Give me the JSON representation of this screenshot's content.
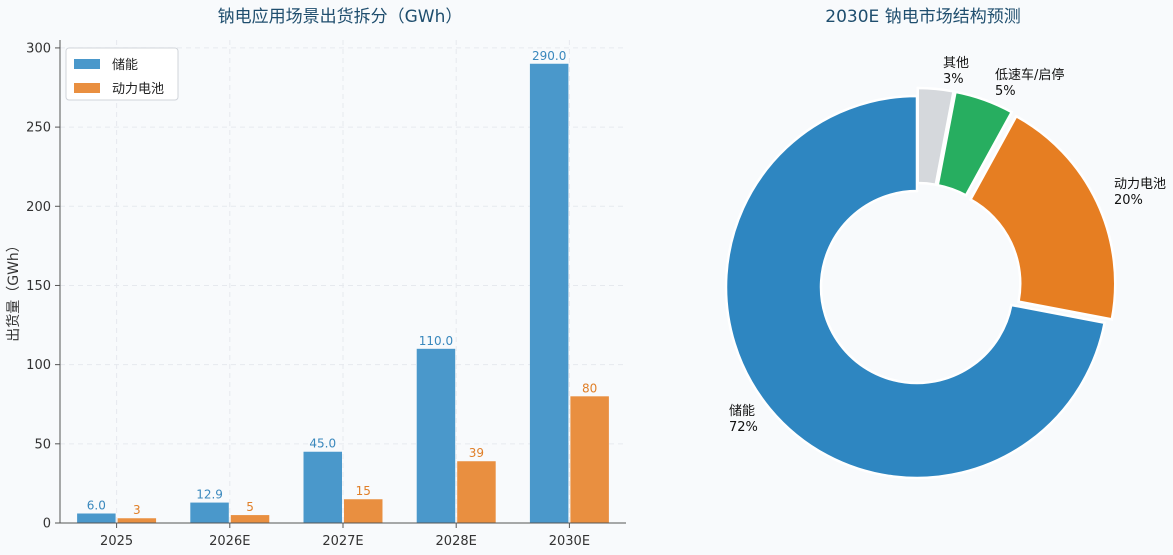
{
  "colors": {
    "storage": "#4a98cb",
    "power": "#e98f40",
    "storage_label": "#3a88bd",
    "power_label": "#e07f28",
    "pie_storage": "#2e86c1",
    "pie_power": "#e67e22",
    "pie_lowspeed": "#27ae60",
    "pie_other": "#d5d8dc",
    "title": "#1f4e6e",
    "grid": "#e6e9ee"
  },
  "chart_data": [
    {
      "type": "bar",
      "title": "钠电应用场景出货拆分（GWh）",
      "xlabel": "",
      "ylabel": "出货量（GWh）",
      "categories": [
        "2025",
        "2026E",
        "2027E",
        "2028E",
        "2030E"
      ],
      "series": [
        {
          "name": "储能",
          "values": [
            6.0,
            12.9,
            45.0,
            110.0,
            290.0
          ],
          "labels": [
            "6.0",
            "12.9",
            "45.0",
            "110.0",
            "290.0"
          ]
        },
        {
          "name": "动力电池",
          "values": [
            3,
            5,
            15,
            39,
            80
          ],
          "labels": [
            "3",
            "5",
            "15",
            "39",
            "80"
          ]
        }
      ],
      "ylim": [
        0,
        305
      ],
      "yticks": [
        "0",
        "50",
        "100",
        "150",
        "200",
        "250",
        "300"
      ],
      "grid": true,
      "legend": "top-left"
    },
    {
      "type": "pie",
      "title": "2030E 钠电市场结构预测",
      "donut": true,
      "slices": [
        {
          "label": "储能",
          "pct": "72%",
          "value": 72
        },
        {
          "label": "动力电池",
          "pct": "20%",
          "value": 20
        },
        {
          "label": "低速车/启停",
          "pct": "5%",
          "value": 5
        },
        {
          "label": "其他",
          "pct": "3%",
          "value": 3
        }
      ]
    }
  ]
}
